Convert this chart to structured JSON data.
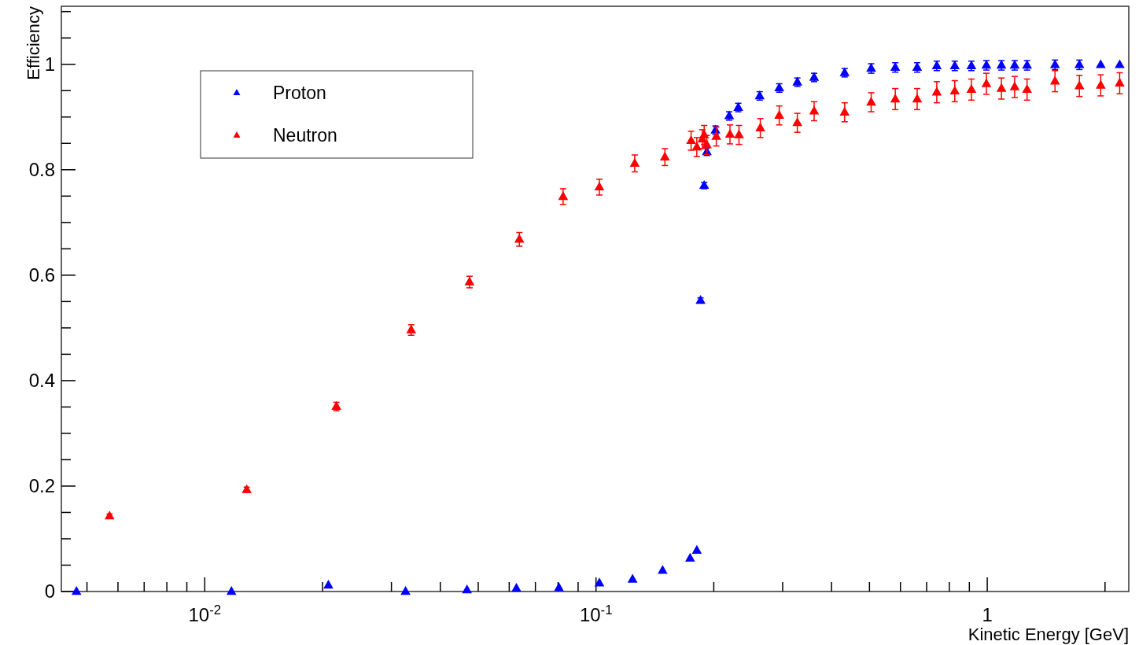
{
  "chart_data": {
    "type": "scatter",
    "xlabel": "Kinetic Energy [GeV]",
    "ylabel": "Efficiency",
    "log": "x",
    "grid": false,
    "legend": "top left",
    "marker": "triangle",
    "xlim": [
      0.0043,
      2.3
    ],
    "ylim": [
      0,
      1.11
    ],
    "xticks": [
      {
        "value": 0.005,
        "label": null
      },
      {
        "value": 0.006,
        "label": null
      },
      {
        "value": 0.007,
        "label": null
      },
      {
        "value": 0.008,
        "label": null
      },
      {
        "value": 0.009,
        "label": null
      },
      {
        "value": 0.01,
        "label": "10$^{-2}$"
      },
      {
        "value": 0.02,
        "label": null
      },
      {
        "value": 0.03,
        "label": null
      },
      {
        "value": 0.04,
        "label": null
      },
      {
        "value": 0.05,
        "label": null
      },
      {
        "value": 0.06,
        "label": null
      },
      {
        "value": 0.07,
        "label": null
      },
      {
        "value": 0.08,
        "label": null
      },
      {
        "value": 0.09,
        "label": null
      },
      {
        "value": 0.1,
        "label": "10$^{-1}$"
      },
      {
        "value": 0.2,
        "label": null
      },
      {
        "value": 0.3,
        "label": null
      },
      {
        "value": 0.4,
        "label": null
      },
      {
        "value": 0.5,
        "label": null
      },
      {
        "value": 0.6,
        "label": null
      },
      {
        "value": 0.7,
        "label": null
      },
      {
        "value": 0.8,
        "label": null
      },
      {
        "value": 0.9,
        "label": null
      },
      1,
      {
        "value": 2,
        "label": null
      }
    ],
    "yticks": [
      0,
      {
        "value": 0.05,
        "label": null
      },
      {
        "value": 0.1,
        "label": null
      },
      {
        "value": 0.15,
        "label": null
      },
      0.2,
      {
        "value": 0.25,
        "label": null
      },
      {
        "value": 0.3,
        "label": null
      },
      {
        "value": 0.35,
        "label": null
      },
      0.4,
      {
        "value": 0.45,
        "label": null
      },
      {
        "value": 0.5,
        "label": null
      },
      {
        "value": 0.55,
        "label": null
      },
      0.6,
      {
        "value": 0.65,
        "label": null
      },
      {
        "value": 0.7,
        "label": null
      },
      {
        "value": 0.75,
        "label": null
      },
      0.8,
      {
        "value": 0.85,
        "label": null
      },
      {
        "value": 0.9,
        "label": null
      },
      {
        "value": 0.95,
        "label": null
      },
      1,
      {
        "value": 1.05,
        "label": null
      },
      {
        "value": 1.1,
        "label": null
      }
    ],
    "series": [
      {
        "name": "Proton",
        "color": "#0000ff",
        "x": [
          0.0047,
          0.0117,
          0.0207,
          0.0326,
          0.0468,
          0.0626,
          0.0804,
          0.102,
          0.124,
          0.148,
          0.174,
          0.181,
          0.185,
          0.189,
          0.192,
          0.202,
          0.219,
          0.231,
          0.262,
          0.294,
          0.327,
          0.361,
          0.432,
          0.505,
          0.582,
          0.662,
          0.743,
          0.826,
          0.911,
          0.995,
          1.087,
          1.175,
          1.264,
          1.49,
          1.72,
          1.95,
          2.18
        ],
        "values": [
          0,
          0,
          0.012,
          0,
          0.003,
          0.006,
          0.007,
          0.016,
          0.023,
          0.04,
          0.063,
          0.078,
          0.552,
          0.77,
          0.834,
          0.875,
          0.902,
          0.918,
          0.94,
          0.955,
          0.966,
          0.975,
          0.984,
          0.992,
          0.994,
          0.994,
          0.997,
          0.997,
          0.997,
          0.998,
          0.998,
          0.998,
          0.998,
          0.999,
          0.999,
          0.999,
          0.999
        ],
        "errors": [
          null,
          null,
          null,
          null,
          null,
          null,
          null,
          null,
          null,
          null,
          null,
          null,
          0.005,
          0.006,
          0.007,
          0.008,
          0.008,
          0.008,
          0.008,
          0.008,
          0.008,
          0.008,
          0.008,
          0.009,
          0.009,
          0.009,
          0.009,
          0.009,
          0.009,
          0.009,
          0.009,
          0.009,
          0.009,
          0.009,
          0.009,
          null,
          null
        ]
      },
      {
        "name": "Neutron",
        "color": "#ff0000",
        "x": [
          0.00571,
          0.0128,
          0.0217,
          0.0337,
          0.0475,
          0.0637,
          0.0824,
          0.102,
          0.1256,
          0.15,
          0.175,
          0.181,
          0.187,
          0.189,
          0.192,
          0.203,
          0.22,
          0.232,
          0.263,
          0.294,
          0.327,
          0.361,
          0.432,
          0.505,
          0.582,
          0.662,
          0.743,
          0.826,
          0.911,
          0.995,
          1.087,
          1.175,
          1.264,
          1.49,
          1.72,
          1.95,
          2.18
        ],
        "values": [
          0.143,
          0.193,
          0.351,
          0.496,
          0.587,
          0.668,
          0.749,
          0.767,
          0.812,
          0.824,
          0.855,
          0.843,
          0.858,
          0.866,
          0.847,
          0.863,
          0.867,
          0.866,
          0.879,
          0.903,
          0.889,
          0.911,
          0.909,
          0.928,
          0.934,
          0.934,
          0.947,
          0.949,
          0.952,
          0.963,
          0.954,
          0.957,
          0.952,
          0.968,
          0.959,
          0.96,
          0.964
        ],
        "errors": [
          0.004,
          0.005,
          0.008,
          0.01,
          0.011,
          0.013,
          0.015,
          0.015,
          0.016,
          0.016,
          0.018,
          0.018,
          0.018,
          0.018,
          0.018,
          0.018,
          0.018,
          0.018,
          0.018,
          0.018,
          0.018,
          0.018,
          0.018,
          0.018,
          0.02,
          0.02,
          0.02,
          0.02,
          0.02,
          0.02,
          0.02,
          0.02,
          0.02,
          0.02,
          0.02,
          0.02,
          0.02
        ]
      }
    ]
  }
}
